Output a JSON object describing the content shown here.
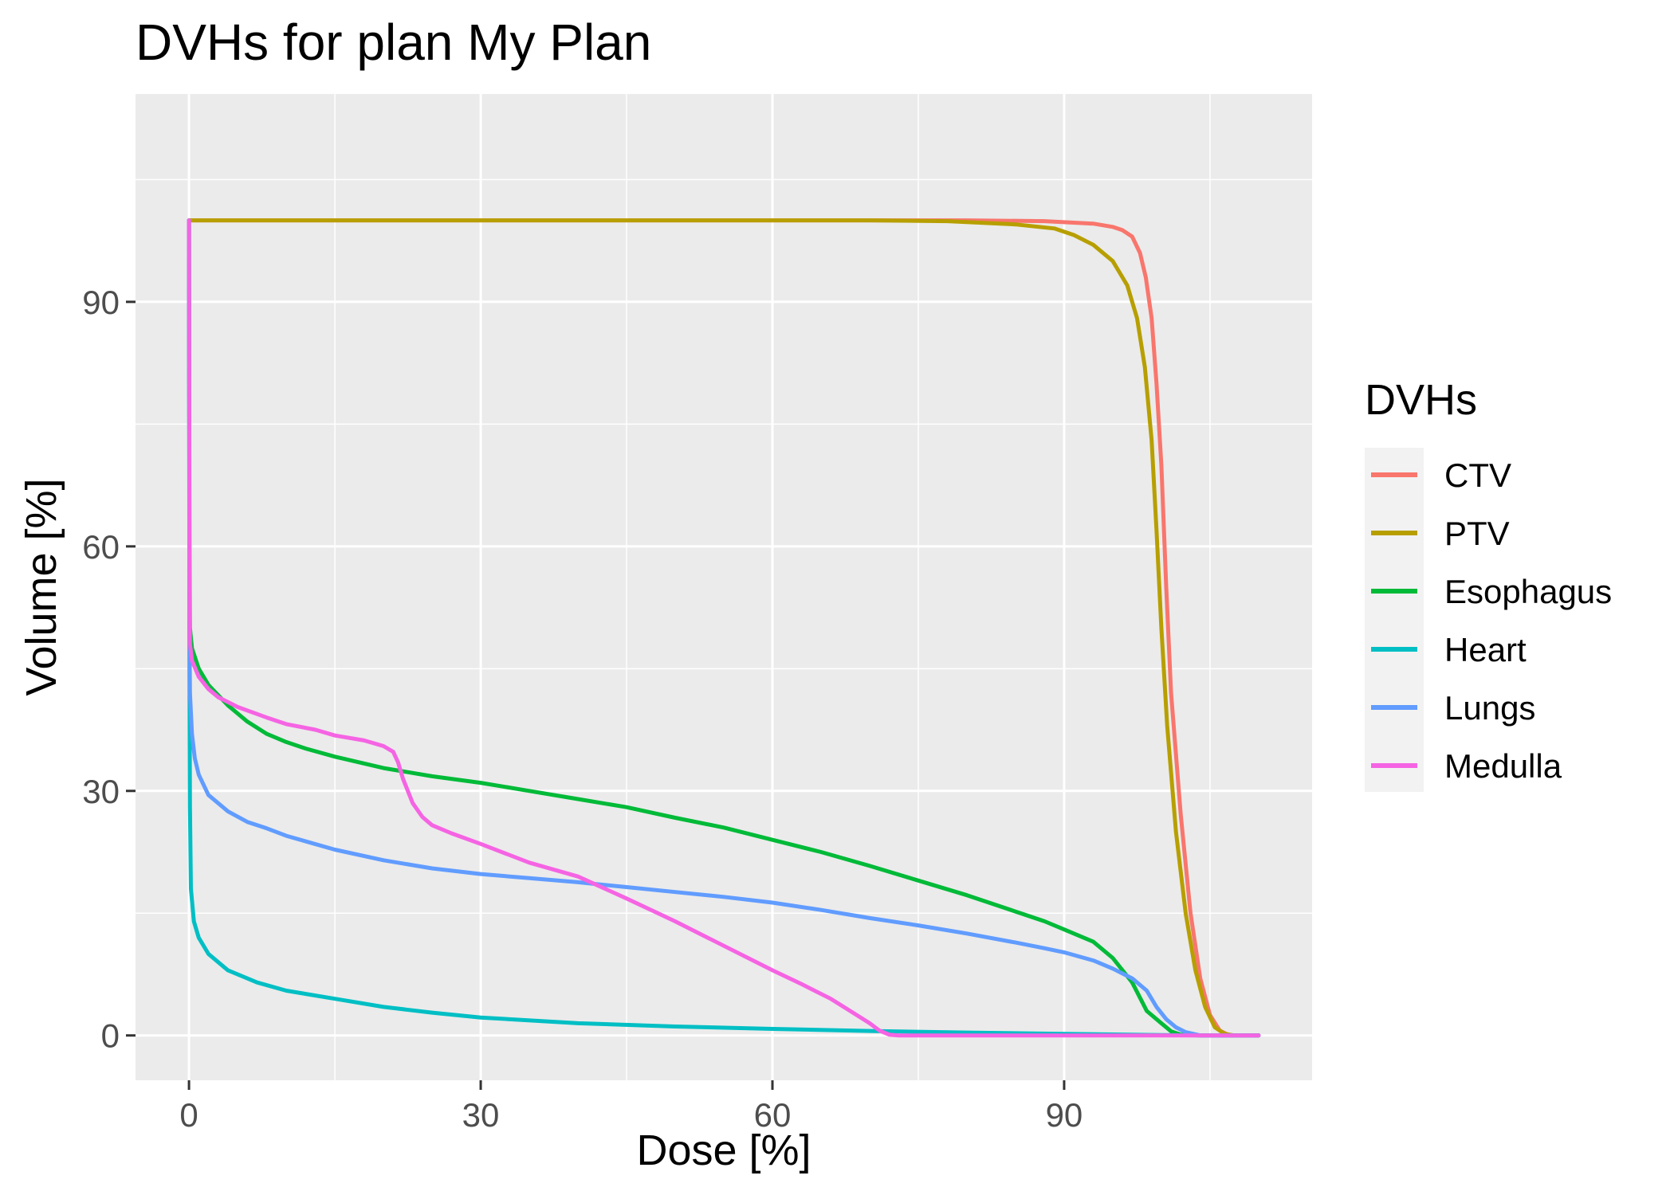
{
  "chart_data": {
    "type": "line",
    "title": "DVHs for plan My Plan",
    "xlabel": "Dose [%]",
    "ylabel": "Volume [%]",
    "xlim": [
      -5.5,
      115.5
    ],
    "ylim": [
      -5.5,
      115.5
    ],
    "xticks": [
      0,
      30,
      60,
      90
    ],
    "yticks": [
      0,
      30,
      60,
      90
    ],
    "x_minor_ticks": [
      15,
      45,
      75,
      105
    ],
    "y_minor_ticks": [
      15,
      45,
      75,
      105
    ],
    "grid": true,
    "legend": {
      "title": "DVHs",
      "position": "right"
    },
    "series": [
      {
        "name": "CTV",
        "color": "#F8766D",
        "points": [
          [
            0,
            100
          ],
          [
            0,
            100
          ],
          [
            70,
            100
          ],
          [
            80,
            100
          ],
          [
            88,
            99.9
          ],
          [
            93,
            99.6
          ],
          [
            95,
            99.2
          ],
          [
            96,
            98.8
          ],
          [
            97,
            98
          ],
          [
            97.8,
            96
          ],
          [
            98.4,
            93
          ],
          [
            99,
            88
          ],
          [
            99.5,
            80
          ],
          [
            100,
            70
          ],
          [
            100.5,
            55
          ],
          [
            101,
            42
          ],
          [
            102,
            27
          ],
          [
            103,
            15
          ],
          [
            104,
            7
          ],
          [
            105,
            2.5
          ],
          [
            106,
            0.6
          ],
          [
            107,
            0
          ],
          [
            110,
            0
          ]
        ]
      },
      {
        "name": "PTV",
        "color": "#B79F00",
        "points": [
          [
            0,
            100
          ],
          [
            0,
            100
          ],
          [
            70,
            100
          ],
          [
            78,
            99.9
          ],
          [
            85,
            99.5
          ],
          [
            89,
            99
          ],
          [
            91,
            98.2
          ],
          [
            93,
            97
          ],
          [
            95,
            95
          ],
          [
            96.5,
            92
          ],
          [
            97.5,
            88
          ],
          [
            98.3,
            82
          ],
          [
            99,
            73
          ],
          [
            99.5,
            62
          ],
          [
            100,
            50
          ],
          [
            100.6,
            38
          ],
          [
            101.5,
            25
          ],
          [
            102.5,
            15
          ],
          [
            103.5,
            8
          ],
          [
            104.5,
            3.5
          ],
          [
            105.5,
            1
          ],
          [
            106.5,
            0.2
          ],
          [
            107.5,
            0
          ],
          [
            110,
            0
          ]
        ]
      },
      {
        "name": "Esophagus",
        "color": "#00BA38",
        "points": [
          [
            0,
            100
          ],
          [
            0.05,
            60
          ],
          [
            0.1,
            50
          ],
          [
            0.3,
            47.5
          ],
          [
            1,
            45
          ],
          [
            2,
            43
          ],
          [
            4,
            40.5
          ],
          [
            6,
            38.5
          ],
          [
            8,
            37
          ],
          [
            10,
            36
          ],
          [
            12,
            35.2
          ],
          [
            15,
            34.2
          ],
          [
            20,
            32.8
          ],
          [
            25,
            31.8
          ],
          [
            30,
            31
          ],
          [
            35,
            30
          ],
          [
            40,
            29
          ],
          [
            45,
            28
          ],
          [
            50,
            26.7
          ],
          [
            55,
            25.5
          ],
          [
            60,
            24
          ],
          [
            65,
            22.5
          ],
          [
            70,
            20.8
          ],
          [
            75,
            19
          ],
          [
            80,
            17.2
          ],
          [
            85,
            15.2
          ],
          [
            88,
            14
          ],
          [
            90,
            13
          ],
          [
            93,
            11.5
          ],
          [
            95,
            9.5
          ],
          [
            97,
            6.5
          ],
          [
            98.5,
            3
          ],
          [
            100,
            1.5
          ],
          [
            101,
            0.5
          ],
          [
            102,
            0.1
          ],
          [
            104,
            0
          ],
          [
            110,
            0
          ]
        ]
      },
      {
        "name": "Heart",
        "color": "#00BFC4",
        "points": [
          [
            0,
            100
          ],
          [
            0.05,
            45
          ],
          [
            0.1,
            28
          ],
          [
            0.2,
            18
          ],
          [
            0.5,
            14
          ],
          [
            1,
            12
          ],
          [
            2,
            10
          ],
          [
            4,
            8
          ],
          [
            7,
            6.5
          ],
          [
            10,
            5.5
          ],
          [
            15,
            4.5
          ],
          [
            20,
            3.5
          ],
          [
            25,
            2.8
          ],
          [
            30,
            2.2
          ],
          [
            40,
            1.5
          ],
          [
            50,
            1.1
          ],
          [
            60,
            0.8
          ],
          [
            70,
            0.55
          ],
          [
            80,
            0.35
          ],
          [
            90,
            0.2
          ],
          [
            100,
            0.05
          ],
          [
            105,
            0
          ],
          [
            110,
            0
          ]
        ]
      },
      {
        "name": "Lungs",
        "color": "#619CFF",
        "points": [
          [
            0,
            100
          ],
          [
            0.05,
            50
          ],
          [
            0.1,
            42
          ],
          [
            0.3,
            37
          ],
          [
            0.6,
            34
          ],
          [
            1,
            32
          ],
          [
            2,
            29.5
          ],
          [
            4,
            27.5
          ],
          [
            6,
            26.2
          ],
          [
            8,
            25.4
          ],
          [
            10,
            24.5
          ],
          [
            15,
            22.8
          ],
          [
            20,
            21.5
          ],
          [
            25,
            20.5
          ],
          [
            30,
            19.8
          ],
          [
            35,
            19.3
          ],
          [
            40,
            18.8
          ],
          [
            45,
            18.2
          ],
          [
            50,
            17.6
          ],
          [
            55,
            17
          ],
          [
            60,
            16.3
          ],
          [
            65,
            15.4
          ],
          [
            70,
            14.4
          ],
          [
            75,
            13.5
          ],
          [
            80,
            12.5
          ],
          [
            85,
            11.4
          ],
          [
            88,
            10.7
          ],
          [
            90,
            10.2
          ],
          [
            93,
            9.2
          ],
          [
            95,
            8.2
          ],
          [
            97,
            7
          ],
          [
            98.5,
            5.5
          ],
          [
            99.5,
            3.5
          ],
          [
            100.5,
            2
          ],
          [
            101.5,
            1
          ],
          [
            102.5,
            0.4
          ],
          [
            104,
            0
          ],
          [
            110,
            0
          ]
        ]
      },
      {
        "name": "Medulla",
        "color": "#F564E3",
        "points": [
          [
            0,
            100
          ],
          [
            0.05,
            55
          ],
          [
            0.1,
            48
          ],
          [
            0.3,
            46
          ],
          [
            1,
            44
          ],
          [
            2,
            42.5
          ],
          [
            3,
            41.5
          ],
          [
            5,
            40.3
          ],
          [
            8,
            39
          ],
          [
            10,
            38.2
          ],
          [
            13,
            37.5
          ],
          [
            15,
            36.8
          ],
          [
            18,
            36.2
          ],
          [
            20,
            35.5
          ],
          [
            21,
            34.8
          ],
          [
            21.5,
            33.5
          ],
          [
            22,
            31.5
          ],
          [
            23,
            28.5
          ],
          [
            24,
            26.8
          ],
          [
            25,
            25.8
          ],
          [
            27,
            24.8
          ],
          [
            30,
            23.5
          ],
          [
            35,
            21.2
          ],
          [
            40,
            19.5
          ],
          [
            45,
            16.8
          ],
          [
            50,
            14
          ],
          [
            55,
            11
          ],
          [
            60,
            8
          ],
          [
            63,
            6.3
          ],
          [
            66,
            4.5
          ],
          [
            68,
            3
          ],
          [
            70,
            1.5
          ],
          [
            71,
            0.6
          ],
          [
            72,
            0.1
          ],
          [
            73,
            0
          ],
          [
            80,
            0
          ],
          [
            110,
            0
          ]
        ]
      }
    ]
  }
}
